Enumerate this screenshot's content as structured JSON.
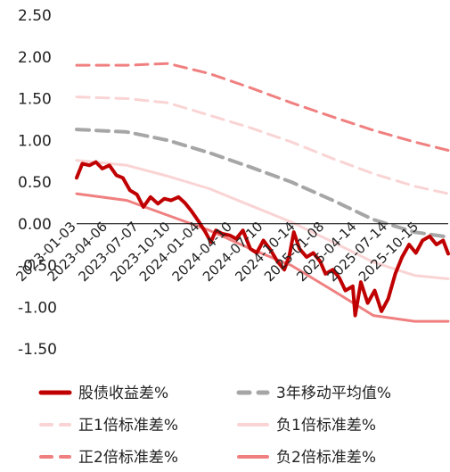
{
  "chart_data": {
    "type": "line",
    "title": "",
    "xlabel": "",
    "ylabel": "",
    "ylim": [
      -1.5,
      2.5
    ],
    "yticks": [
      "2.50",
      "2.00",
      "1.50",
      "1.00",
      "0.50",
      "0.00",
      "-0.50",
      "-1.00",
      "-1.50"
    ],
    "ytick_values": [
      2.5,
      2.0,
      1.5,
      1.0,
      0.5,
      0.0,
      -0.5,
      -1.0,
      -1.5
    ],
    "xlim": [
      "2023-01-03",
      "2026-01-09"
    ],
    "xticks": [
      "2023-01-03",
      "2023-04-06",
      "2023-07-07",
      "2023-10-10",
      "2024-01-04",
      "2024-04-10",
      "2024-07-10",
      "2024-10-14",
      "2025-01-08",
      "2025-04-14",
      "2025-07-14",
      "2025-10-15"
    ],
    "legend_position": "bottom",
    "grid": false,
    "series": [
      {
        "name": "股债收益差%",
        "color": "#C00000",
        "style": "solid",
        "width": 4,
        "x": [
          "2023-01-03",
          "2023-01-20",
          "2023-02-10",
          "2023-03-01",
          "2023-03-20",
          "2023-04-10",
          "2023-05-01",
          "2023-05-20",
          "2023-06-10",
          "2023-07-01",
          "2023-07-20",
          "2023-08-10",
          "2023-09-01",
          "2023-09-20",
          "2023-10-10",
          "2023-11-01",
          "2023-11-20",
          "2023-12-10",
          "2024-01-01",
          "2024-01-20",
          "2024-02-05",
          "2024-02-20",
          "2024-03-10",
          "2024-04-01",
          "2024-04-20",
          "2024-05-10",
          "2024-06-01",
          "2024-06-20",
          "2024-07-10",
          "2024-08-01",
          "2024-08-20",
          "2024-09-10",
          "2024-09-25",
          "2024-10-08",
          "2024-10-25",
          "2024-11-15",
          "2024-12-05",
          "2024-12-25",
          "2025-01-10",
          "2025-02-01",
          "2025-02-20",
          "2025-03-10",
          "2025-04-01",
          "2025-04-08",
          "2025-04-25",
          "2025-05-15",
          "2025-06-05",
          "2025-06-25",
          "2025-07-15",
          "2025-08-05",
          "2025-08-25",
          "2025-09-15",
          "2025-10-05",
          "2025-10-25",
          "2025-11-15",
          "2025-12-05",
          "2025-12-25",
          "2026-01-09"
        ],
        "y": [
          0.55,
          0.72,
          0.7,
          0.74,
          0.66,
          0.7,
          0.58,
          0.55,
          0.4,
          0.35,
          0.2,
          0.32,
          0.24,
          0.3,
          0.28,
          0.32,
          0.25,
          0.15,
          0.02,
          -0.1,
          -0.22,
          -0.08,
          -0.12,
          -0.14,
          -0.18,
          -0.08,
          -0.3,
          -0.35,
          -0.2,
          -0.32,
          -0.45,
          -0.55,
          -0.38,
          -0.1,
          -0.3,
          -0.4,
          -0.35,
          -0.45,
          -0.6,
          -0.55,
          -0.65,
          -0.8,
          -0.75,
          -1.1,
          -0.7,
          -0.95,
          -0.8,
          -1.05,
          -0.9,
          -0.6,
          -0.4,
          -0.25,
          -0.35,
          -0.2,
          -0.15,
          -0.25,
          -0.2,
          -0.36
        ]
      },
      {
        "name": "3年移动平均值%",
        "color": "#A6A6A6",
        "style": "dashed",
        "width": 4,
        "x": [
          "2023-01-03",
          "2023-06-01",
          "2023-10-01",
          "2024-02-01",
          "2024-06-01",
          "2024-10-01",
          "2025-02-01",
          "2025-06-01",
          "2025-10-01",
          "2026-01-09"
        ],
        "y": [
          1.13,
          1.1,
          1.0,
          0.85,
          0.68,
          0.5,
          0.28,
          0.05,
          -0.1,
          -0.16
        ]
      },
      {
        "name": "正1倍标准差%",
        "color": "#FAD4D4",
        "style": "dashed",
        "width": 3,
        "x": [
          "2023-01-03",
          "2023-06-01",
          "2023-10-01",
          "2024-02-01",
          "2024-06-01",
          "2024-10-01",
          "2025-02-01",
          "2025-06-01",
          "2025-10-01",
          "2026-01-09"
        ],
        "y": [
          1.52,
          1.5,
          1.45,
          1.3,
          1.15,
          0.98,
          0.78,
          0.6,
          0.45,
          0.36
        ]
      },
      {
        "name": "负1倍标准差%",
        "color": "#FAD4D4",
        "style": "solid",
        "width": 3,
        "x": [
          "2023-01-03",
          "2023-06-01",
          "2023-10-01",
          "2024-02-01",
          "2024-06-01",
          "2024-10-01",
          "2025-02-01",
          "2025-06-01",
          "2025-10-01",
          "2026-01-09"
        ],
        "y": [
          0.76,
          0.7,
          0.57,
          0.42,
          0.22,
          0.02,
          -0.22,
          -0.46,
          -0.62,
          -0.66
        ]
      },
      {
        "name": "正2倍标准差%",
        "color": "#F08080",
        "style": "dashed",
        "width": 3,
        "x": [
          "2023-01-03",
          "2023-06-01",
          "2023-10-01",
          "2024-02-01",
          "2024-06-01",
          "2024-10-01",
          "2025-02-01",
          "2025-06-01",
          "2025-10-01",
          "2026-01-09"
        ],
        "y": [
          1.9,
          1.9,
          1.92,
          1.8,
          1.63,
          1.45,
          1.28,
          1.12,
          0.98,
          0.88
        ]
      },
      {
        "name": "负2倍标准差%",
        "color": "#F08080",
        "style": "solid",
        "width": 3,
        "x": [
          "2023-01-03",
          "2023-06-01",
          "2023-10-01",
          "2024-02-01",
          "2024-06-01",
          "2024-10-01",
          "2025-02-01",
          "2025-06-01",
          "2025-10-01",
          "2026-01-09"
        ],
        "y": [
          0.36,
          0.28,
          0.1,
          -0.08,
          -0.3,
          -0.5,
          -0.8,
          -1.1,
          -1.17,
          -1.17
        ]
      }
    ]
  }
}
